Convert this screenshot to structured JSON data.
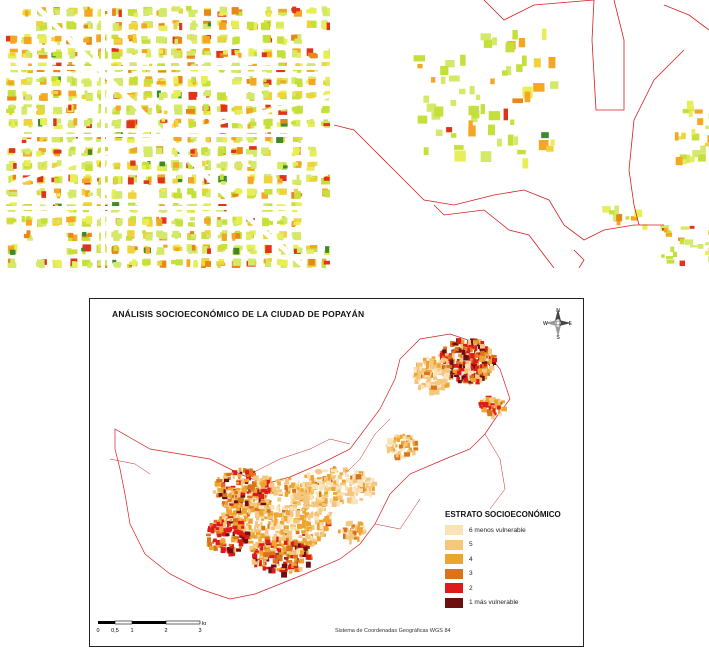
{
  "main_map": {
    "title": "ANÁLISIS SOCIOECONÓMICO DE LA CIUDAD DE POPAYÁN",
    "crs_note": "Sistema de Coordenadas Geográficas WGS 84",
    "compass": {
      "n": "N",
      "s": "S",
      "e": "E",
      "w": "W"
    },
    "scale": {
      "ticks": [
        "0",
        "0,5",
        "1",
        "2",
        "3"
      ],
      "unit": "km"
    },
    "legend": {
      "title": "ESTRATO SOCIOECONÓMICO",
      "items": [
        {
          "label": "6 menos vulnerable",
          "color": "#fbe3b8"
        },
        {
          "label": "5",
          "color": "#f5c77e"
        },
        {
          "label": "4",
          "color": "#eda530"
        },
        {
          "label": "3",
          "color": "#d9741a"
        },
        {
          "label": "2",
          "color": "#e0191b"
        },
        {
          "label": "1 más vulnerable",
          "color": "#6b0f0f"
        }
      ]
    }
  },
  "colors": {
    "detail_palette": [
      "#d4e86a",
      "#c5df3b",
      "#e8ee55",
      "#f0d23a",
      "#f5a623",
      "#e8861a",
      "#e0331a",
      "#3c8a2a"
    ],
    "boundary": "#d42020"
  }
}
